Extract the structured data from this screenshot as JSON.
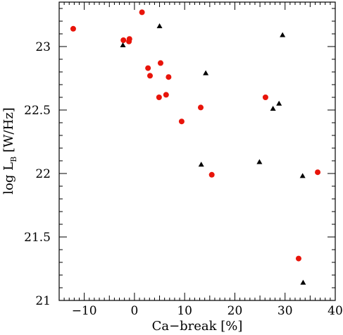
{
  "chart_data": {
    "type": "scatter",
    "xlabel": "Ca−break [%]",
    "ylabel_main": "log  L",
    "ylabel_sub": "B",
    "ylabel_unit": "  [W/Hz]",
    "xlim": [
      -15,
      40
    ],
    "ylim": [
      21,
      23.35
    ],
    "x_ticks": [
      -10,
      0,
      10,
      20,
      30,
      40
    ],
    "x_tick_labels": [
      "−10",
      "0",
      "10",
      "20",
      "30",
      "40"
    ],
    "y_ticks": [
      21,
      21.5,
      22,
      22.5,
      23
    ],
    "y_tick_labels": [
      "21",
      "21.5",
      "22",
      "22.5",
      "23"
    ],
    "grid": false,
    "series": [
      {
        "marker": "circle",
        "color": "#e8140a",
        "points": [
          {
            "x": -12.2,
            "y": 23.14
          },
          {
            "x": -2.2,
            "y": 23.05
          },
          {
            "x": -1.0,
            "y": 23.06
          },
          {
            "x": -1.1,
            "y": 23.04
          },
          {
            "x": 1.5,
            "y": 23.27
          },
          {
            "x": 2.7,
            "y": 22.83
          },
          {
            "x": 3.1,
            "y": 22.77
          },
          {
            "x": 5.2,
            "y": 22.87
          },
          {
            "x": 6.8,
            "y": 22.76
          },
          {
            "x": 4.9,
            "y": 22.6
          },
          {
            "x": 6.3,
            "y": 22.62
          },
          {
            "x": 9.4,
            "y": 22.41
          },
          {
            "x": 13.2,
            "y": 22.52
          },
          {
            "x": 15.4,
            "y": 21.99
          },
          {
            "x": 26.1,
            "y": 22.6
          },
          {
            "x": 32.7,
            "y": 21.33
          },
          {
            "x": 36.5,
            "y": 22.01
          }
        ]
      },
      {
        "marker": "triangle",
        "color": "#000000",
        "points": [
          {
            "x": -2.3,
            "y": 23.01
          },
          {
            "x": 5.0,
            "y": 23.16
          },
          {
            "x": 14.2,
            "y": 22.79
          },
          {
            "x": 13.3,
            "y": 22.07
          },
          {
            "x": 24.9,
            "y": 22.09
          },
          {
            "x": 27.6,
            "y": 22.51
          },
          {
            "x": 28.8,
            "y": 22.55
          },
          {
            "x": 29.5,
            "y": 23.09
          },
          {
            "x": 33.5,
            "y": 21.98
          },
          {
            "x": 33.6,
            "y": 21.14
          }
        ]
      }
    ]
  }
}
